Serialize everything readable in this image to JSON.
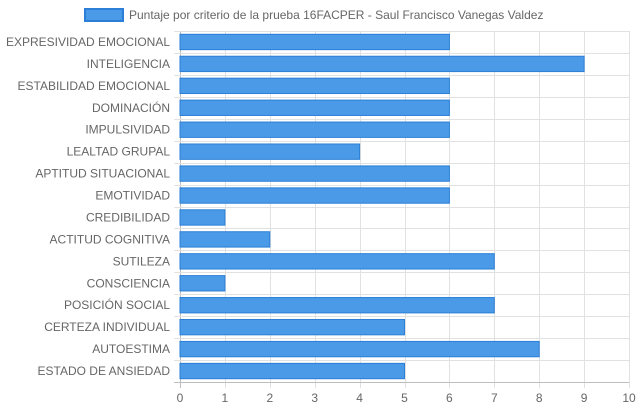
{
  "chart_data": {
    "type": "bar",
    "orientation": "horizontal",
    "categories": [
      "EXPRESIVIDAD EMOCIONAL",
      "INTELIGENCIA",
      "ESTABILIDAD EMOCIONAL",
      "DOMINACIÓN",
      "IMPULSIVIDAD",
      "LEALTAD GRUPAL",
      "APTITUD SITUACIONAL",
      "EMOTIVIDAD",
      "CREDIBILIDAD",
      "ACTITUD COGNITIVA",
      "SUTILEZA",
      "CONSCIENCIA",
      "POSICIÓN SOCIAL",
      "CERTEZA INDIVIDUAL",
      "AUTOESTIMA",
      "ESTADO DE ANSIEDAD"
    ],
    "series": [
      {
        "name": "Puntaje por criterio de la prueba 16FACPER - Saul Francisco Vanegas Valdez",
        "values": [
          6,
          9,
          6,
          6,
          6,
          4,
          6,
          6,
          1,
          2,
          7,
          1,
          7,
          5,
          8,
          5
        ],
        "color": "#4a9ae8",
        "border_color": "#2b7fd6"
      }
    ],
    "xlim": [
      0,
      10
    ],
    "x_ticks": [
      "0",
      "1",
      "2",
      "3",
      "4",
      "5",
      "6",
      "7",
      "8",
      "9",
      "10"
    ],
    "grid": true,
    "legend_position": "top"
  }
}
